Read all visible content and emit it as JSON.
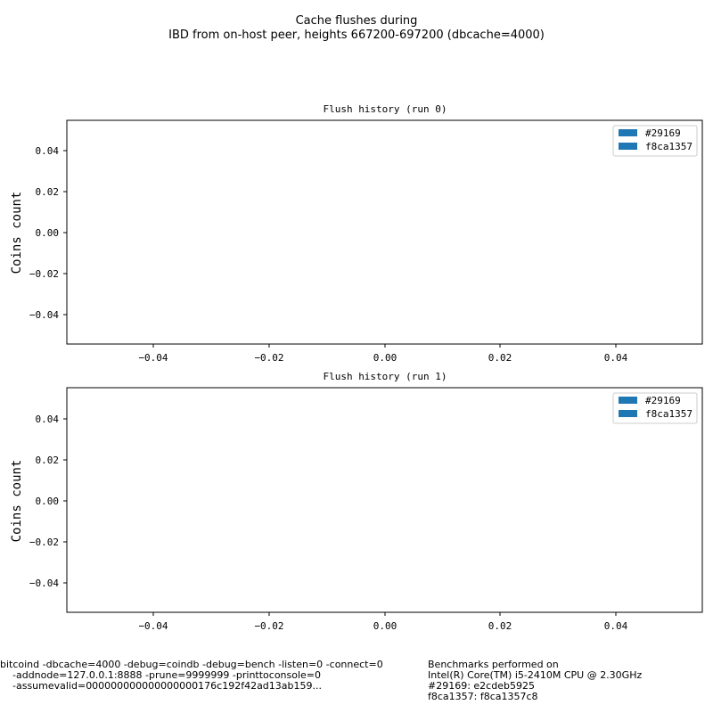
{
  "figure": {
    "title_lines": [
      "Cache flushes during",
      "IBD from on-host peer, heights 667200-697200 (dbcache=4000)"
    ],
    "footer_left_lines": [
      "bitcoind -dbcache=4000 -debug=coindb -debug=bench -listen=0 -connect=0",
      "-addnode=127.0.0.1:8888 -prune=9999999 -printtoconsole=0",
      "-assumevalid=000000000000000000176c192f42ad13ab159..."
    ],
    "footer_right_lines": [
      "Benchmarks performed on",
      "Intel(R) Core(TM) i5-2410M CPU @ 2.30GHz",
      "#29169: e2cdeb5925",
      "f8ca1357: f8ca1357c8"
    ]
  },
  "colors": {
    "series_color": "#1f77b4",
    "axis": "#000000"
  },
  "chart_data": [
    {
      "type": "bar",
      "title": "Flush history (run 0)",
      "ylabel": "Coins count",
      "xlabel": "",
      "xlim": [
        -0.055,
        0.055
      ],
      "ylim": [
        -0.055,
        0.055
      ],
      "x_ticks": [
        "−0.04",
        "−0.02",
        "0.00",
        "0.02",
        "0.04"
      ],
      "y_ticks": [
        "0.04",
        "0.02",
        "0.00",
        "−0.02",
        "−0.04"
      ],
      "legend": [
        "#29169",
        "f8ca1357"
      ],
      "legend_position": "top-right",
      "grid": false,
      "series": [
        {
          "name": "#29169",
          "values": []
        },
        {
          "name": "f8ca1357",
          "values": []
        }
      ]
    },
    {
      "type": "bar",
      "title": "Flush history (run 1)",
      "ylabel": "Coins count",
      "xlabel": "",
      "xlim": [
        -0.055,
        0.055
      ],
      "ylim": [
        -0.055,
        0.055
      ],
      "x_ticks": [
        "−0.04",
        "−0.02",
        "0.00",
        "0.02",
        "0.04"
      ],
      "y_ticks": [
        "0.04",
        "0.02",
        "0.00",
        "−0.02",
        "−0.04"
      ],
      "legend": [
        "#29169",
        "f8ca1357"
      ],
      "legend_position": "top-right",
      "grid": false,
      "series": [
        {
          "name": "#29169",
          "values": []
        },
        {
          "name": "f8ca1357",
          "values": []
        }
      ]
    }
  ]
}
